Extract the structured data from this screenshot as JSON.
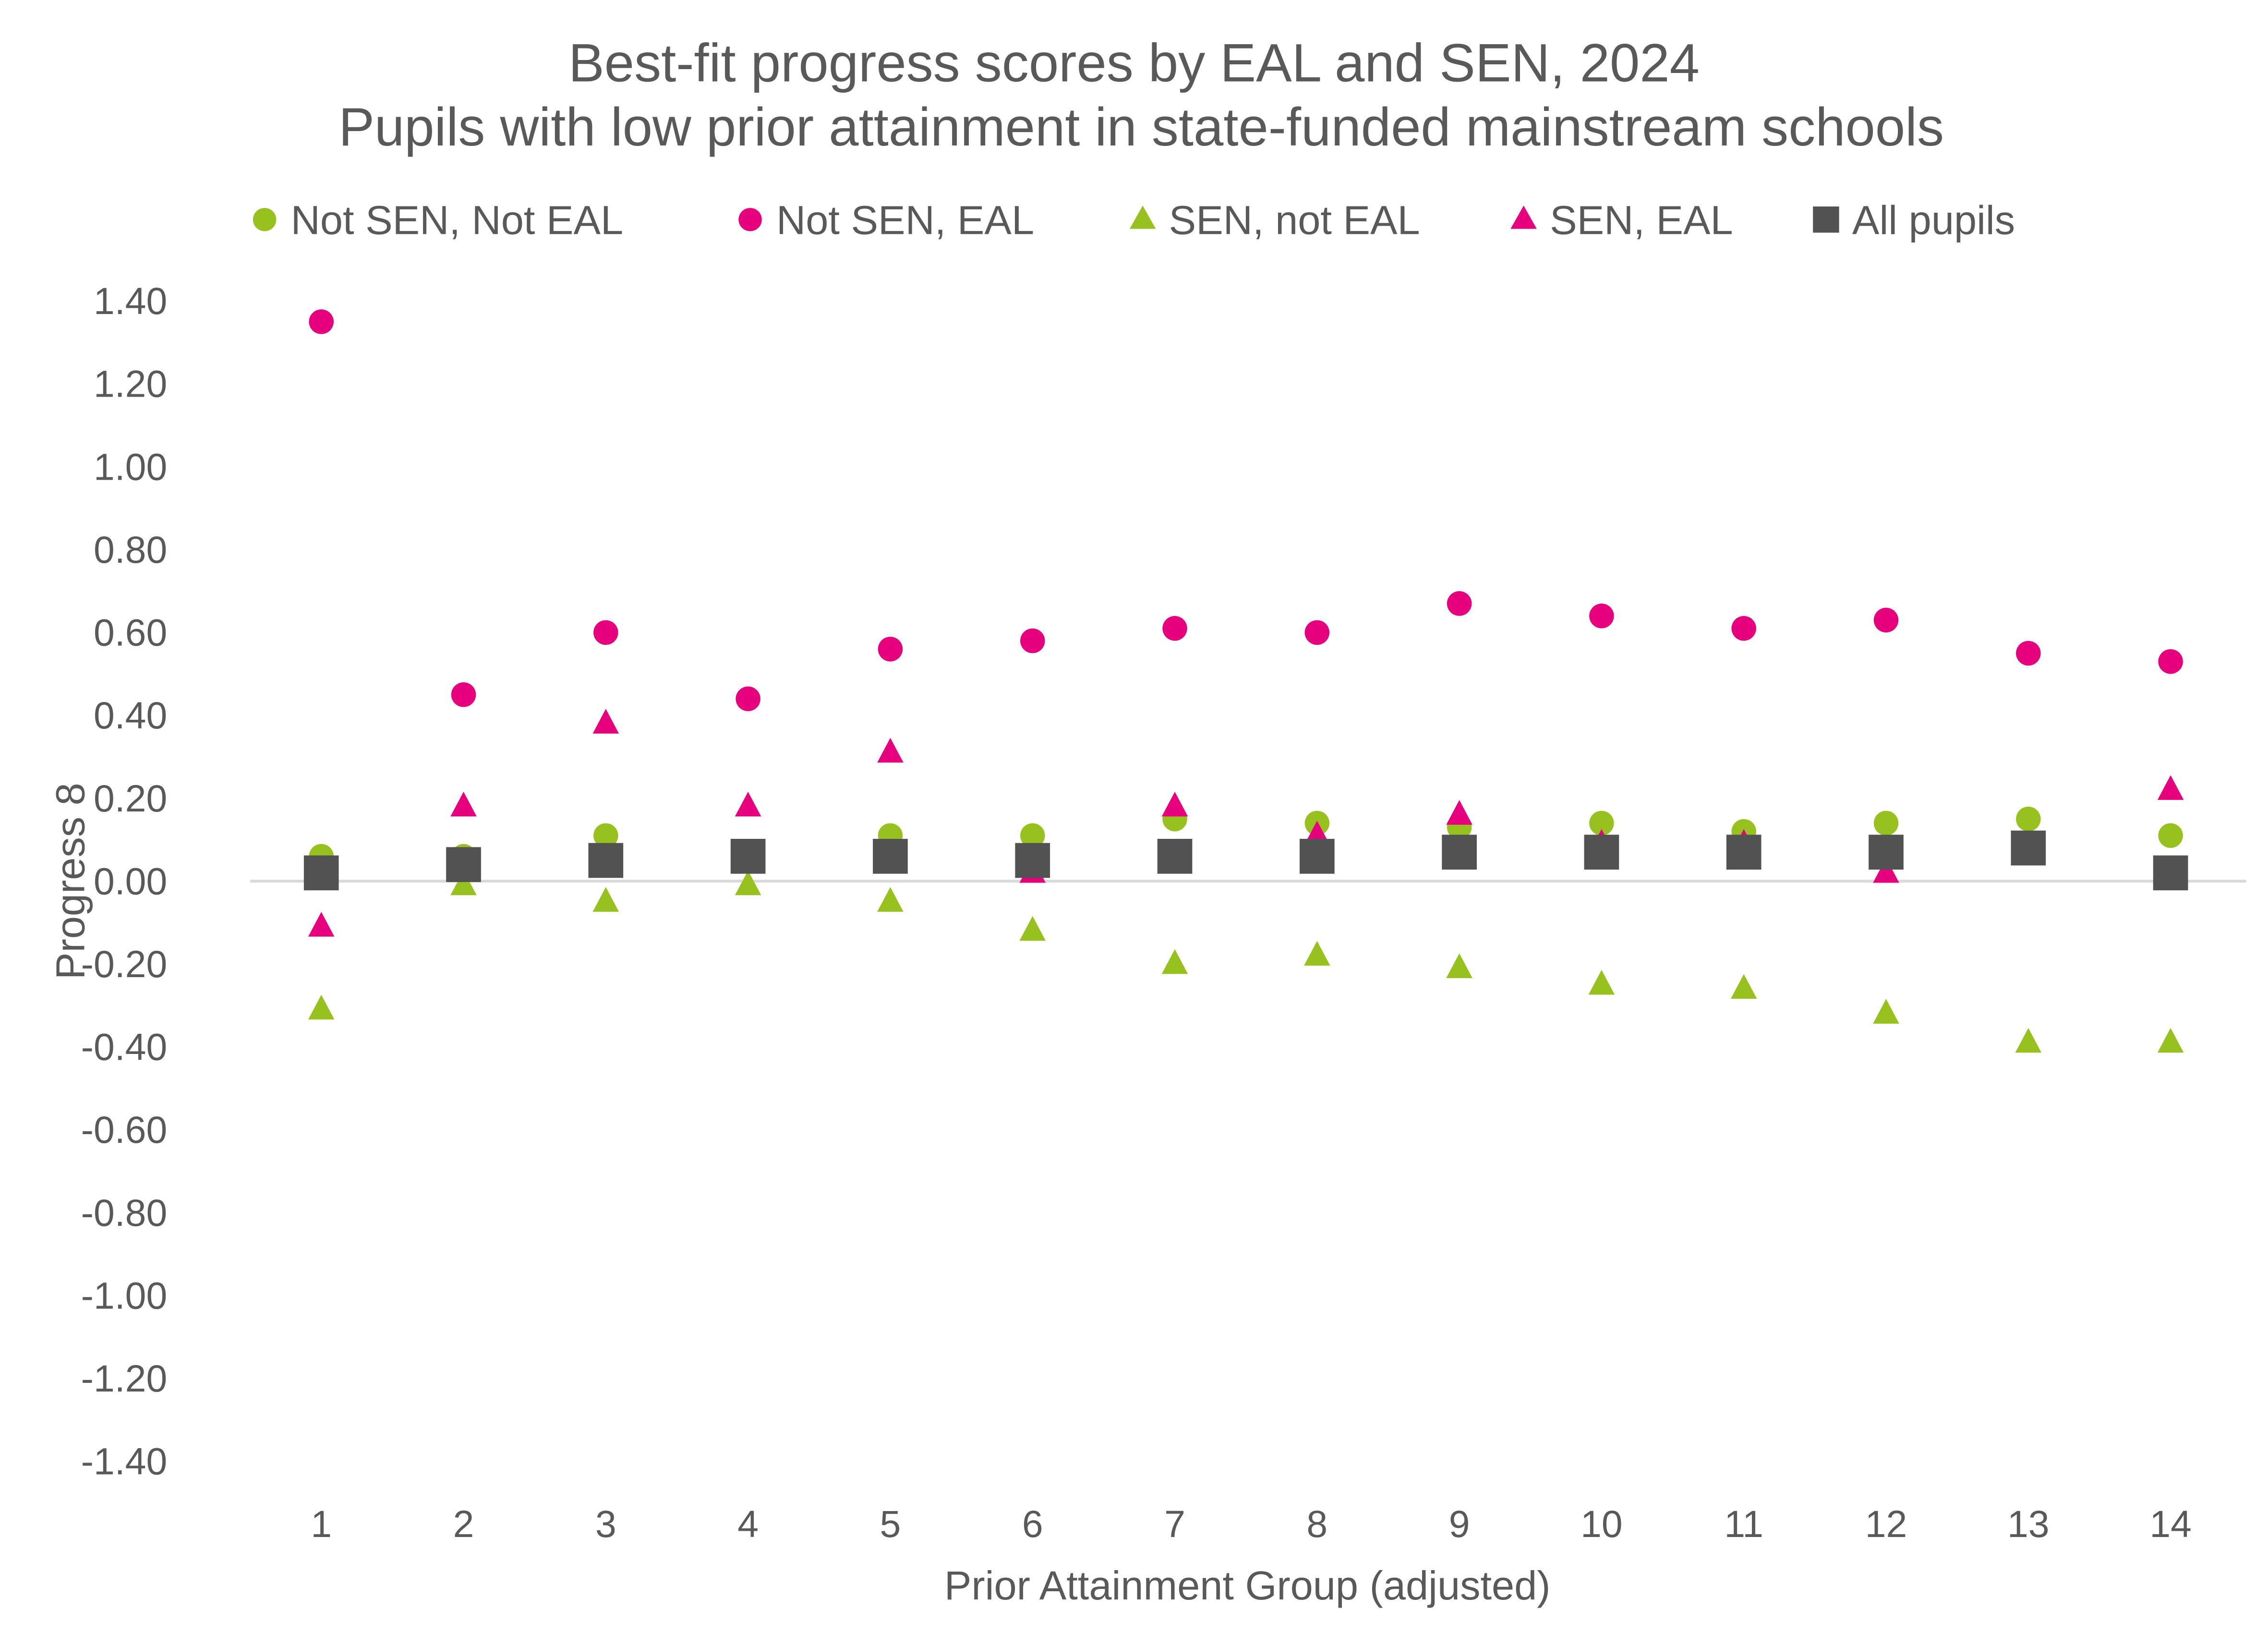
{
  "chart_data": {
    "type": "scatter",
    "title": "Best-fit progress scores by EAL and SEN, 2024",
    "subtitle": "Pupils with low prior attainment in state-funded mainstream schools",
    "xlabel": "Prior Attainment Group (adjusted)",
    "ylabel": "Progress 8",
    "x": [
      1,
      2,
      3,
      4,
      5,
      6,
      7,
      8,
      9,
      10,
      11,
      12,
      13,
      14
    ],
    "ylim": [
      -1.4,
      1.4
    ],
    "yticks": [
      "1.40",
      "1.20",
      "1.00",
      "0.80",
      "0.60",
      "0.40",
      "0.20",
      "0.00",
      "-0.20",
      "-0.40",
      "-0.60",
      "-0.80",
      "-1.00",
      "-1.20",
      "-1.40"
    ],
    "xticks": [
      "1",
      "2",
      "3",
      "4",
      "5",
      "6",
      "7",
      "8",
      "9",
      "10",
      "11",
      "12",
      "13",
      "14"
    ],
    "grid": false,
    "legend_position": "top",
    "series": [
      {
        "name": "Not SEN, Not EAL",
        "marker": "circle",
        "color": "#97C11F",
        "values": [
          0.06,
          0.06,
          0.11,
          0.06,
          0.11,
          0.11,
          0.15,
          0.14,
          0.13,
          0.14,
          0.12,
          0.14,
          0.15,
          0.11
        ]
      },
      {
        "name": "Not SEN, EAL",
        "marker": "circle",
        "color": "#E6007E",
        "values": [
          1.35,
          0.45,
          0.6,
          0.44,
          0.56,
          0.58,
          0.61,
          0.6,
          0.67,
          0.64,
          0.61,
          0.63,
          0.55,
          0.53
        ]
      },
      {
        "name": "SEN, not EAL",
        "marker": "triangle",
        "color": "#97C11F",
        "values": [
          -0.31,
          -0.01,
          -0.05,
          -0.01,
          -0.05,
          -0.12,
          -0.2,
          -0.18,
          -0.21,
          -0.25,
          -0.26,
          -0.32,
          -0.39,
          -0.39
        ]
      },
      {
        "name": "SEN, EAL",
        "marker": "triangle",
        "color": "#E6007E",
        "values": [
          -0.11,
          0.18,
          0.38,
          0.18,
          0.31,
          0.02,
          0.18,
          0.11,
          0.16,
          0.09,
          0.09,
          0.02,
          0.08,
          0.22
        ]
      },
      {
        "name": "All pupils",
        "marker": "square",
        "color": "#525252",
        "values": [
          0.02,
          0.04,
          0.05,
          0.06,
          0.06,
          0.05,
          0.06,
          0.06,
          0.07,
          0.07,
          0.07,
          0.07,
          0.08,
          0.02
        ]
      }
    ]
  }
}
